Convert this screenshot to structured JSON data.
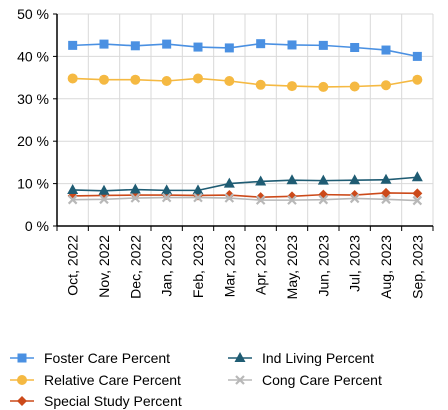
{
  "chart_data": {
    "type": "line",
    "categories": [
      "Oct, 2022",
      "Nov, 2022",
      "Dec, 2022",
      "Jan, 2023",
      "Feb, 2023",
      "Mar, 2023",
      "Apr, 2023",
      "May, 2023",
      "Jun, 2023",
      "Jul, 2023",
      "Aug, 2023",
      "Sep, 2023"
    ],
    "ylim": [
      0,
      50
    ],
    "yticks": [
      0,
      10,
      20,
      30,
      40,
      50
    ],
    "ytick_labels": [
      "0 %",
      "10 %",
      "20 %",
      "30 %",
      "40 %",
      "50 %"
    ],
    "grid": true,
    "legend_position": "bottom",
    "series": [
      {
        "name": "Foster Care Percent",
        "color": "#4a90e2",
        "marker": "square",
        "values": [
          42.6,
          42.9,
          42.5,
          42.9,
          42.2,
          42.0,
          43.0,
          42.7,
          42.6,
          42.1,
          41.5,
          40.0
        ]
      },
      {
        "name": "Relative Care Percent",
        "color": "#f5b942",
        "marker": "circle",
        "values": [
          34.8,
          34.5,
          34.5,
          34.2,
          34.8,
          34.2,
          33.3,
          33.0,
          32.8,
          32.9,
          33.2,
          34.5
        ]
      },
      {
        "name": "Special Study Percent",
        "color": "#cc4a1a",
        "marker": "diamond",
        "values": [
          7.1,
          7.2,
          7.3,
          7.3,
          7.2,
          7.3,
          6.8,
          7.0,
          7.4,
          7.3,
          7.8,
          7.7
        ]
      },
      {
        "name": "Ind Living Percent",
        "color": "#1f5c73",
        "marker": "triangle",
        "values": [
          8.5,
          8.3,
          8.6,
          8.4,
          8.4,
          10.0,
          10.5,
          10.8,
          10.7,
          10.8,
          10.9,
          11.5
        ]
      },
      {
        "name": "Cong Care Percent",
        "color": "#b8b8b8",
        "marker": "x",
        "values": [
          6.2,
          6.3,
          6.6,
          6.7,
          6.7,
          6.6,
          6.1,
          6.1,
          6.2,
          6.5,
          6.3,
          6.0
        ]
      }
    ],
    "legend_order": [
      0,
      3,
      1,
      4,
      2
    ]
  }
}
